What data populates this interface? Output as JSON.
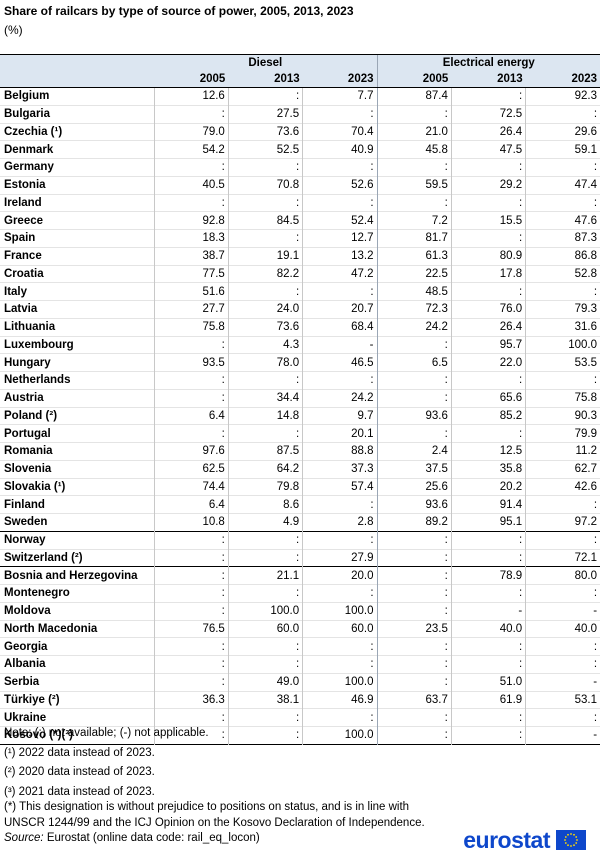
{
  "title": "Share of railcars by type of source of power, 2005, 2013, 2023",
  "subtitle": "(%)",
  "chart_data": {
    "type": "table",
    "column_groups": [
      "Diesel",
      "Electrical energy"
    ],
    "years": [
      "2005",
      "2013",
      "2023"
    ],
    "rows": [
      {
        "country": "Belgium",
        "values": [
          "12.6",
          ":",
          "7.7",
          "87.4",
          ":",
          "92.3"
        ]
      },
      {
        "country": "Bulgaria",
        "values": [
          ":",
          "27.5",
          ":",
          ":",
          "72.5",
          ":"
        ]
      },
      {
        "country": "Czechia (¹)",
        "values": [
          "79.0",
          "73.6",
          "70.4",
          "21.0",
          "26.4",
          "29.6"
        ]
      },
      {
        "country": "Denmark",
        "values": [
          "54.2",
          "52.5",
          "40.9",
          "45.8",
          "47.5",
          "59.1"
        ]
      },
      {
        "country": "Germany",
        "values": [
          ":",
          ":",
          ":",
          ":",
          ":",
          ":"
        ]
      },
      {
        "country": "Estonia",
        "values": [
          "40.5",
          "70.8",
          "52.6",
          "59.5",
          "29.2",
          "47.4"
        ]
      },
      {
        "country": "Ireland",
        "values": [
          ":",
          ":",
          ":",
          ":",
          ":",
          ":"
        ]
      },
      {
        "country": "Greece",
        "values": [
          "92.8",
          "84.5",
          "52.4",
          "7.2",
          "15.5",
          "47.6"
        ]
      },
      {
        "country": "Spain",
        "values": [
          "18.3",
          ":",
          "12.7",
          "81.7",
          ":",
          "87.3"
        ]
      },
      {
        "country": "France",
        "values": [
          "38.7",
          "19.1",
          "13.2",
          "61.3",
          "80.9",
          "86.8"
        ]
      },
      {
        "country": "Croatia",
        "values": [
          "77.5",
          "82.2",
          "47.2",
          "22.5",
          "17.8",
          "52.8"
        ]
      },
      {
        "country": "Italy",
        "values": [
          "51.6",
          ":",
          ":",
          "48.5",
          ":",
          ":"
        ]
      },
      {
        "country": "Latvia",
        "values": [
          "27.7",
          "24.0",
          "20.7",
          "72.3",
          "76.0",
          "79.3"
        ]
      },
      {
        "country": "Lithuania",
        "values": [
          "75.8",
          "73.6",
          "68.4",
          "24.2",
          "26.4",
          "31.6"
        ]
      },
      {
        "country": "Luxembourg",
        "values": [
          ":",
          "4.3",
          "-",
          ":",
          "95.7",
          "100.0"
        ]
      },
      {
        "country": "Hungary",
        "values": [
          "93.5",
          "78.0",
          "46.5",
          "6.5",
          "22.0",
          "53.5"
        ]
      },
      {
        "country": "Netherlands",
        "values": [
          ":",
          ":",
          ":",
          ":",
          ":",
          ":"
        ]
      },
      {
        "country": "Austria",
        "values": [
          ":",
          "34.4",
          "24.2",
          ":",
          "65.6",
          "75.8"
        ]
      },
      {
        "country": "Poland (²)",
        "values": [
          "6.4",
          "14.8",
          "9.7",
          "93.6",
          "85.2",
          "90.3"
        ]
      },
      {
        "country": "Portugal",
        "values": [
          ":",
          ":",
          "20.1",
          ":",
          ":",
          "79.9"
        ]
      },
      {
        "country": "Romania",
        "values": [
          "97.6",
          "87.5",
          "88.8",
          "2.4",
          "12.5",
          "11.2"
        ]
      },
      {
        "country": "Slovenia",
        "values": [
          "62.5",
          "64.2",
          "37.3",
          "37.5",
          "35.8",
          "62.7"
        ]
      },
      {
        "country": "Slovakia (¹)",
        "values": [
          "74.4",
          "79.8",
          "57.4",
          "25.6",
          "20.2",
          "42.6"
        ]
      },
      {
        "country": "Finland",
        "values": [
          "6.4",
          "8.6",
          ":",
          "93.6",
          "91.4",
          ":"
        ]
      },
      {
        "country": "Sweden",
        "values": [
          "10.8",
          "4.9",
          "2.8",
          "89.2",
          "95.1",
          "97.2"
        ],
        "separator_after": true
      },
      {
        "country": "Norway",
        "values": [
          ":",
          ":",
          ":",
          ":",
          ":",
          ":"
        ]
      },
      {
        "country": "Switzerland (²)",
        "values": [
          ":",
          ":",
          "27.9",
          ":",
          ":",
          "72.1"
        ],
        "separator_after": true
      },
      {
        "country": "Bosnia and Herzegovina",
        "values": [
          ":",
          "21.1",
          "20.0",
          ":",
          "78.9",
          "80.0"
        ]
      },
      {
        "country": "Montenegro",
        "values": [
          ":",
          ":",
          ":",
          ":",
          ":",
          ":"
        ]
      },
      {
        "country": "Moldova",
        "values": [
          ":",
          "100.0",
          "100.0",
          ":",
          "-",
          "-"
        ]
      },
      {
        "country": "North Macedonia",
        "values": [
          "76.5",
          "60.0",
          "60.0",
          "23.5",
          "40.0",
          "40.0"
        ]
      },
      {
        "country": "Georgia",
        "values": [
          ":",
          ":",
          ":",
          ":",
          ":",
          ":"
        ]
      },
      {
        "country": "Albania",
        "values": [
          ":",
          ":",
          ":",
          ":",
          ":",
          ":"
        ]
      },
      {
        "country": "Serbia",
        "values": [
          ":",
          "49.0",
          "100.0",
          ":",
          "51.0",
          "-"
        ]
      },
      {
        "country": "Türkiye (²)",
        "values": [
          "36.3",
          "38.1",
          "46.9",
          "63.7",
          "61.9",
          "53.1"
        ]
      },
      {
        "country": "Ukraine",
        "values": [
          ":",
          ":",
          ":",
          ":",
          ":",
          ":"
        ]
      },
      {
        "country": "Kosovo (*)(³)",
        "values": [
          ":",
          ":",
          "100.0",
          ":",
          ":",
          "-"
        ]
      }
    ]
  },
  "notes": [
    "Note: (:) not available; (-) not applicable.",
    "(¹) 2022 data instead of 2023.",
    "(²) 2020 data instead of 2023.",
    "(³) 2021 data instead of 2023.",
    "(*) This designation is without prejudice to positions on status, and is in line with UNSCR 1244/99 and the ICJ Opinion on the Kosovo Declaration of Independence."
  ],
  "source": {
    "label": "Source:",
    "text": " Eurostat (online data code: rail_eq_locon)"
  },
  "logo": {
    "text": "eurostat",
    "brand_color": "#0e47cb"
  }
}
